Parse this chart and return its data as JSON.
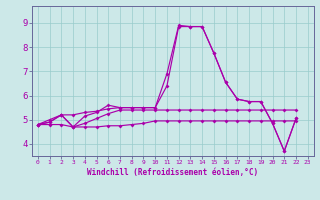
{
  "bg_color": "#cce8e8",
  "line_color": "#aa00aa",
  "grid_color": "#99cccc",
  "spine_color": "#666699",
  "xlabel": "Windchill (Refroidissement éolien,°C)",
  "xlim": [
    -0.5,
    23.5
  ],
  "ylim": [
    3.5,
    9.7
  ],
  "yticks": [
    4,
    5,
    6,
    7,
    8,
    9
  ],
  "xticks": [
    0,
    1,
    2,
    3,
    4,
    5,
    6,
    7,
    8,
    9,
    10,
    11,
    12,
    13,
    14,
    15,
    16,
    17,
    18,
    19,
    20,
    21,
    22,
    23
  ],
  "lines": [
    {
      "x": [
        0,
        1,
        2,
        3,
        4,
        5,
        6,
        7,
        8,
        9,
        10,
        11,
        12,
        13,
        14,
        15,
        16,
        17,
        18,
        19,
        20,
        21,
        22
      ],
      "y": [
        4.8,
        4.9,
        5.2,
        4.7,
        5.15,
        5.3,
        5.6,
        5.5,
        5.5,
        5.5,
        5.5,
        6.9,
        8.9,
        8.85,
        8.85,
        7.75,
        6.55,
        5.85,
        5.75,
        5.75,
        4.85,
        3.7,
        5.05
      ]
    },
    {
      "x": [
        0,
        1,
        2,
        3,
        4,
        5,
        6,
        7,
        8,
        9,
        10,
        11,
        12,
        13,
        14,
        15,
        16,
        17,
        18,
        19,
        20,
        21,
        22
      ],
      "y": [
        4.8,
        4.9,
        5.2,
        5.2,
        5.3,
        5.35,
        5.45,
        5.5,
        5.5,
        5.5,
        5.5,
        6.4,
        8.85,
        8.85,
        8.85,
        7.75,
        6.55,
        5.85,
        5.75,
        5.75,
        4.85,
        3.7,
        5.05
      ]
    },
    {
      "x": [
        0,
        1,
        2,
        3,
        4,
        5,
        6,
        7,
        8,
        9,
        10,
        11,
        12,
        13,
        14,
        15,
        16,
        17,
        18,
        19,
        20,
        21,
        22
      ],
      "y": [
        4.8,
        5.0,
        5.2,
        4.7,
        4.85,
        5.05,
        5.25,
        5.4,
        5.4,
        5.4,
        5.4,
        5.4,
        5.4,
        5.4,
        5.4,
        5.4,
        5.4,
        5.4,
        5.4,
        5.4,
        5.4,
        5.4,
        5.4
      ]
    },
    {
      "x": [
        0,
        1,
        2,
        3,
        4,
        5,
        6,
        7,
        8,
        9,
        10,
        11,
        12,
        13,
        14,
        15,
        16,
        17,
        18,
        19,
        20,
        21,
        22
      ],
      "y": [
        4.8,
        4.8,
        4.8,
        4.7,
        4.7,
        4.7,
        4.75,
        4.75,
        4.8,
        4.85,
        4.95,
        4.95,
        4.95,
        4.95,
        4.95,
        4.95,
        4.95,
        4.95,
        4.95,
        4.95,
        4.95,
        4.95,
        4.95
      ]
    }
  ]
}
